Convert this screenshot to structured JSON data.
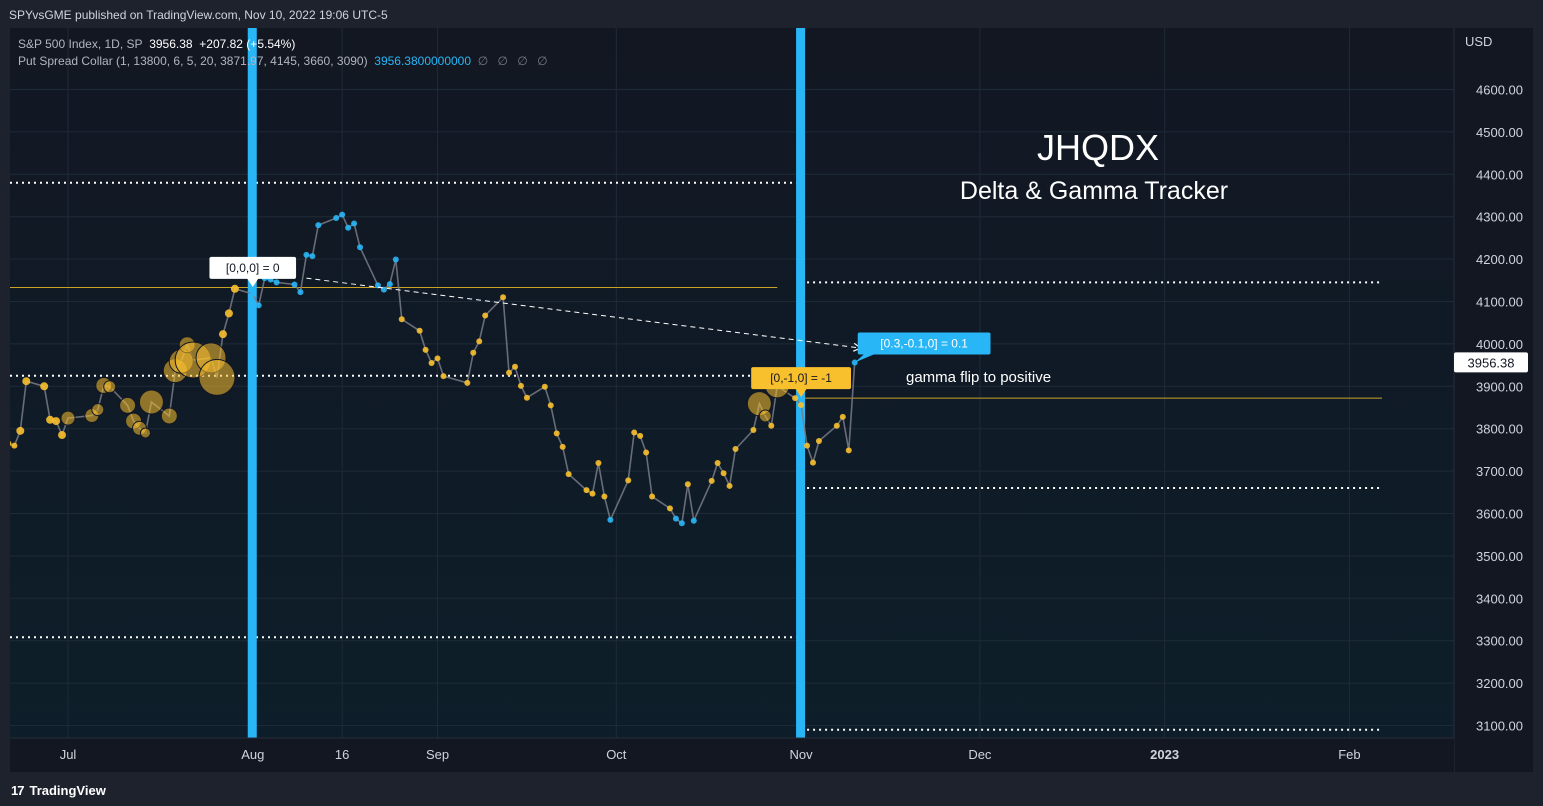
{
  "header": {
    "published_text": "SPYvsGME published on TradingView.com, Nov 10, 2022 19:06 UTC-5"
  },
  "footer": {
    "logo_mark": "17",
    "brand": "TradingView"
  },
  "legend": {
    "symbol_line": "S&P 500 Index, 1D, SP",
    "last_price": "3956.38",
    "change": "+207.82 (+5.54%)",
    "indicator_line": "Put Spread Collar (1, 13800, 6, 5, 20, 3871.97, 4145, 3660, 3090)",
    "indicator_value": "3956.3800000000",
    "na_symbols": "∅ ∅ ∅ ∅"
  },
  "colors": {
    "background": "#131722",
    "accent_blue": "#29b6f6",
    "accent_yellow": "#f9c02e",
    "price_line": "#787b86",
    "level_line": "#ffffff"
  },
  "chart_data": {
    "type": "line",
    "title": "JHQDX",
    "subtitle": "Delta & Gamma Tracker",
    "currency": "USD",
    "ylim": [
      3060,
      4700
    ],
    "y_ticks": [
      4600,
      4500,
      4400,
      4300,
      4200,
      4100,
      4000,
      3900,
      3800,
      3700,
      3600,
      3500,
      3400,
      3300,
      3200,
      3100
    ],
    "x_ticks": [
      {
        "label": "Jul",
        "date": "2022-07-01",
        "bold": false
      },
      {
        "label": "Aug",
        "date": "2022-08-01",
        "bold": false
      },
      {
        "label": "16",
        "date": "2022-08-16",
        "bold": false
      },
      {
        "label": "Sep",
        "date": "2022-09-01",
        "bold": false
      },
      {
        "label": "Oct",
        "date": "2022-10-01",
        "bold": false
      },
      {
        "label": "Nov",
        "date": "2022-11-01",
        "bold": false
      },
      {
        "label": "Dec",
        "date": "2022-12-01",
        "bold": false
      },
      {
        "label": "2023",
        "date": "2023-01-01",
        "bold": true
      },
      {
        "label": "Feb",
        "date": "2023-02-01",
        "bold": false
      }
    ],
    "grid": true,
    "series": [
      {
        "points": [
          [
            "2022-06-21",
            3765,
            "Y",
            3
          ],
          [
            "2022-06-22",
            3760,
            "Y",
            3
          ],
          [
            "2022-06-23",
            3795,
            "Y",
            4
          ],
          [
            "2022-06-24",
            3912,
            "Y",
            4
          ],
          [
            "2022-06-27",
            3900,
            "Y",
            4
          ],
          [
            "2022-06-28",
            3821,
            "Y",
            4
          ],
          [
            "2022-06-29",
            3818,
            "Y",
            4
          ],
          [
            "2022-06-30",
            3785,
            "Y",
            4
          ],
          [
            "2022-07-01",
            3825,
            "Y",
            7
          ],
          [
            "2022-07-05",
            3831,
            "Y",
            7
          ],
          [
            "2022-07-06",
            3845,
            "Y",
            6
          ],
          [
            "2022-07-07",
            3902,
            "Y",
            8
          ],
          [
            "2022-07-08",
            3899,
            "Y",
            6
          ],
          [
            "2022-07-11",
            3855,
            "Y",
            8
          ],
          [
            "2022-07-12",
            3818,
            "Y",
            8
          ],
          [
            "2022-07-13",
            3801,
            "Y",
            7
          ],
          [
            "2022-07-14",
            3790,
            "Y",
            5
          ],
          [
            "2022-07-15",
            3863,
            "Y",
            12
          ],
          [
            "2022-07-18",
            3830,
            "Y",
            8
          ],
          [
            "2022-07-19",
            3937,
            "Y",
            12
          ],
          [
            "2022-07-20",
            3959,
            "Y",
            12
          ],
          [
            "2022-07-21",
            3998,
            "Y",
            8
          ],
          [
            "2022-07-22",
            3962,
            "Y",
            18
          ],
          [
            "2022-07-25",
            3967,
            "Y",
            15
          ],
          [
            "2022-07-26",
            3921,
            "Y",
            18
          ],
          [
            "2022-07-27",
            4023,
            "Y",
            4
          ],
          [
            "2022-07-28",
            4072,
            "Y",
            4
          ],
          [
            "2022-07-29",
            4130,
            "Y",
            4
          ],
          [
            "2022-08-01",
            4118,
            "B",
            3
          ],
          [
            "2022-08-02",
            4091,
            "B",
            3
          ],
          [
            "2022-08-03",
            4155,
            "B",
            3
          ],
          [
            "2022-08-04",
            4152,
            "B",
            3
          ],
          [
            "2022-08-05",
            4145,
            "B",
            3
          ],
          [
            "2022-08-08",
            4140,
            "B",
            3
          ],
          [
            "2022-08-09",
            4122,
            "B",
            3
          ],
          [
            "2022-08-10",
            4210,
            "B",
            3
          ],
          [
            "2022-08-11",
            4207,
            "B",
            3
          ],
          [
            "2022-08-12",
            4280,
            "B",
            3
          ],
          [
            "2022-08-15",
            4297,
            "B",
            3
          ],
          [
            "2022-08-16",
            4305,
            "B",
            3
          ],
          [
            "2022-08-17",
            4274,
            "B",
            3
          ],
          [
            "2022-08-18",
            4284,
            "B",
            3
          ],
          [
            "2022-08-19",
            4228,
            "B",
            3
          ],
          [
            "2022-08-22",
            4138,
            "B",
            3
          ],
          [
            "2022-08-23",
            4128,
            "B",
            3
          ],
          [
            "2022-08-24",
            4141,
            "B",
            3
          ],
          [
            "2022-08-25",
            4199,
            "B",
            3
          ],
          [
            "2022-08-26",
            4058,
            "Y",
            3
          ],
          [
            "2022-08-29",
            4031,
            "Y",
            3
          ],
          [
            "2022-08-30",
            3986,
            "Y",
            3
          ],
          [
            "2022-08-31",
            3955,
            "Y",
            3
          ],
          [
            "2022-09-01",
            3966,
            "Y",
            3
          ],
          [
            "2022-09-02",
            3924,
            "Y",
            3
          ],
          [
            "2022-09-06",
            3908,
            "Y",
            3
          ],
          [
            "2022-09-07",
            3979,
            "Y",
            3
          ],
          [
            "2022-09-08",
            4006,
            "Y",
            3
          ],
          [
            "2022-09-09",
            4067,
            "Y",
            3
          ],
          [
            "2022-09-12",
            4110,
            "Y",
            3
          ],
          [
            "2022-09-13",
            3932,
            "Y",
            3
          ],
          [
            "2022-09-14",
            3946,
            "Y",
            3
          ],
          [
            "2022-09-15",
            3901,
            "Y",
            3
          ],
          [
            "2022-09-16",
            3873,
            "Y",
            3
          ],
          [
            "2022-09-19",
            3899,
            "Y",
            3
          ],
          [
            "2022-09-20",
            3855,
            "Y",
            3
          ],
          [
            "2022-09-21",
            3789,
            "Y",
            3
          ],
          [
            "2022-09-22",
            3757,
            "Y",
            3
          ],
          [
            "2022-09-23",
            3693,
            "Y",
            3
          ],
          [
            "2022-09-26",
            3655,
            "Y",
            3
          ],
          [
            "2022-09-27",
            3647,
            "Y",
            3
          ],
          [
            "2022-09-28",
            3719,
            "Y",
            3
          ],
          [
            "2022-09-29",
            3640,
            "Y",
            3
          ],
          [
            "2022-09-30",
            3585,
            "B",
            3
          ],
          [
            "2022-10-03",
            3678,
            "Y",
            3
          ],
          [
            "2022-10-04",
            3791,
            "Y",
            3
          ],
          [
            "2022-10-05",
            3783,
            "Y",
            3
          ],
          [
            "2022-10-06",
            3744,
            "Y",
            3
          ],
          [
            "2022-10-07",
            3640,
            "Y",
            3
          ],
          [
            "2022-10-10",
            3612,
            "Y",
            3
          ],
          [
            "2022-10-11",
            3588,
            "B",
            3
          ],
          [
            "2022-10-12",
            3577,
            "B",
            3
          ],
          [
            "2022-10-13",
            3669,
            "Y",
            3
          ],
          [
            "2022-10-14",
            3583,
            "B",
            3
          ],
          [
            "2022-10-17",
            3677,
            "Y",
            3
          ],
          [
            "2022-10-18",
            3719,
            "Y",
            3
          ],
          [
            "2022-10-19",
            3695,
            "Y",
            3
          ],
          [
            "2022-10-20",
            3665,
            "Y",
            3
          ],
          [
            "2022-10-21",
            3752,
            "Y",
            3
          ],
          [
            "2022-10-24",
            3797,
            "Y",
            3
          ],
          [
            "2022-10-25",
            3859,
            "Y",
            12
          ],
          [
            "2022-10-26",
            3830,
            "Y",
            6
          ],
          [
            "2022-10-27",
            3807,
            "Y",
            3
          ],
          [
            "2022-10-28",
            3901,
            "Y",
            12
          ],
          [
            "2022-10-31",
            3872,
            "Y",
            3
          ],
          [
            "2022-11-01",
            3856,
            "Y",
            3
          ],
          [
            "2022-11-02",
            3760,
            "Y",
            3
          ],
          [
            "2022-11-03",
            3720,
            "Y",
            3
          ],
          [
            "2022-11-04",
            3771,
            "Y",
            3
          ],
          [
            "2022-11-07",
            3807,
            "Y",
            3
          ],
          [
            "2022-11-08",
            3828,
            "Y",
            3
          ],
          [
            "2022-11-09",
            3749,
            "Y",
            3
          ],
          [
            "2022-11-10",
            3956,
            "B",
            3
          ]
        ]
      }
    ],
    "vertical_bands": [
      "2022-08-01",
      "2022-11-01"
    ],
    "dotted_levels": [
      {
        "value": 4380,
        "from": "start",
        "to": "2022-11-01"
      },
      {
        "value": 3925,
        "from": "start",
        "to": "2022-11-01"
      },
      {
        "value": 3308,
        "from": "start",
        "to": "2022-11-01"
      },
      {
        "value": 4145,
        "from": "2022-11-01",
        "to": "end"
      },
      {
        "value": 3660,
        "from": "2022-11-01",
        "to": "end"
      },
      {
        "value": 3090,
        "from": "2022-11-01",
        "to": "end"
      }
    ],
    "solid_levels": [
      {
        "value": 4133,
        "from": "start",
        "to": "2022-10-28"
      },
      {
        "value": 3872,
        "from": "2022-11-01",
        "to": "end"
      }
    ],
    "arrow": {
      "from": [
        "2022-08-10",
        4155
      ],
      "to": [
        "2022-11-11",
        3990
      ]
    },
    "labels": [
      {
        "text": "[0,0,0] = 0",
        "date": "2022-08-01",
        "value": 4132,
        "style": "white"
      },
      {
        "text": "[0,-1,0] = -1",
        "date": "2022-11-01",
        "value": 3872,
        "style": "yellow"
      },
      {
        "text": "[0.3,-0.1,0] = 0.1",
        "date": "2022-11-10",
        "value": 3956,
        "style": "blue"
      }
    ],
    "annotation": "gamma flip to positive",
    "price_label": "3956.38",
    "price_value": 3956.38
  }
}
